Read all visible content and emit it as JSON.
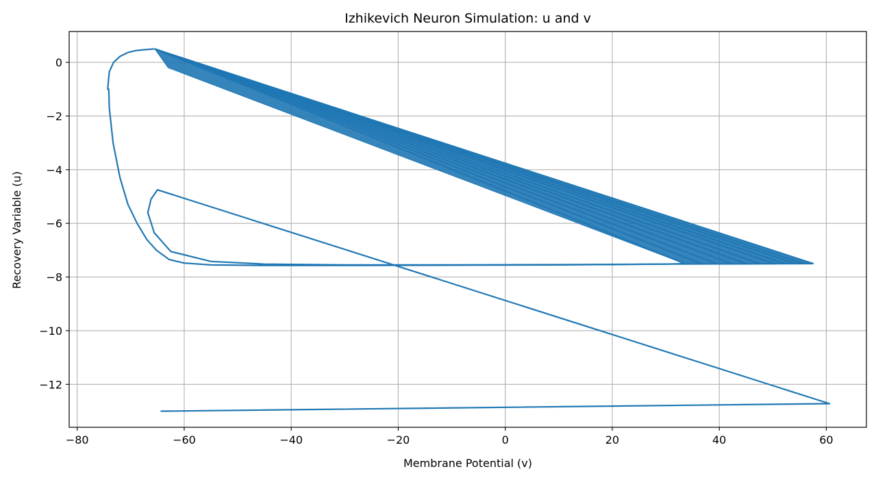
{
  "chart_data": {
    "type": "line",
    "title": "Izhikevich Neuron Simulation: u and v",
    "xlabel": "Membrane Potential (v)",
    "ylabel": "Recovery Variable (u)",
    "xlim": [
      -81.5,
      67.5
    ],
    "ylim": [
      -13.6,
      1.15
    ],
    "xticks": [
      -80,
      -60,
      -40,
      -20,
      0,
      20,
      40,
      60
    ],
    "yticks": [
      0,
      -2,
      -4,
      -6,
      -8,
      -10,
      -12
    ],
    "grid": true,
    "line_color": "#1f77b4",
    "series": [
      {
        "x": [
          -64.3,
          60.6,
          -65,
          -66.2,
          -66.8,
          -65.6,
          -62.5,
          -55,
          -45,
          -30,
          -10,
          10,
          30,
          45,
          57.5
        ],
        "y": [
          -13.0,
          -12.72,
          -4.75,
          -5.1,
          -5.6,
          -6.35,
          -7.05,
          -7.42,
          -7.52,
          -7.55,
          -7.55,
          -7.54,
          -7.52,
          -7.51,
          -7.5
        ]
      },
      {
        "x": [
          -74.1,
          -74.0,
          -73.3,
          -72,
          -70.5,
          -68.8,
          -67,
          -65.2,
          -62.8,
          -60,
          -55,
          -45,
          -30,
          -10,
          10,
          30,
          33.5
        ],
        "y": [
          -1.0,
          -1.7,
          -3.0,
          -4.3,
          -5.3,
          -6.0,
          -6.6,
          -7.0,
          -7.35,
          -7.48,
          -7.55,
          -7.57,
          -7.57,
          -7.56,
          -7.55,
          -7.52,
          -7.5
        ]
      },
      {
        "x": [
          -74.3,
          -74.0,
          -73.2,
          -72,
          -70.5,
          -69,
          -67.5,
          -65.7
        ],
        "y": [
          -1.0,
          -0.35,
          0.0,
          0.22,
          0.37,
          0.44,
          0.47,
          0.5
        ]
      }
    ],
    "resets": [
      {
        "v": 57.6,
        "u": -7.5
      },
      {
        "v": 55.8,
        "u": -7.5
      },
      {
        "v": 54.2,
        "u": -7.5
      },
      {
        "v": 52.2,
        "u": -7.5
      },
      {
        "v": 50.2,
        "u": -7.5
      },
      {
        "v": 47.5,
        "u": -7.5
      },
      {
        "v": 45.0,
        "u": -7.5
      },
      {
        "v": 42.3,
        "u": -7.5
      },
      {
        "v": 39.5,
        "u": -7.5
      },
      {
        "v": 36.6,
        "u": -7.5
      },
      {
        "v": 33.5,
        "u": -7.5
      }
    ],
    "reset_origin": {
      "v": -65.5,
      "u": 0.5
    },
    "reset_band_u": [
      -0.2,
      0.45
    ]
  }
}
